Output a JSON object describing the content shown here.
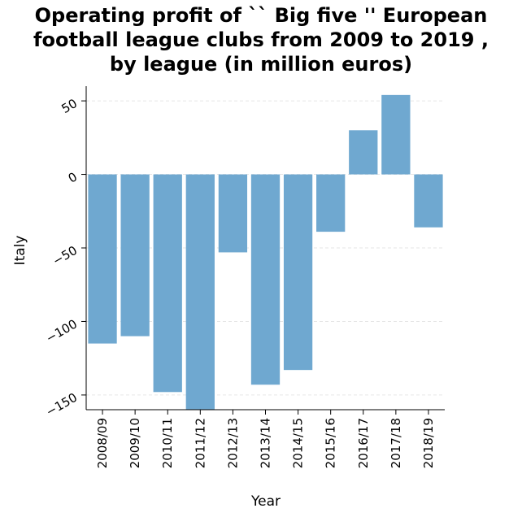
{
  "chart_data": {
    "type": "bar",
    "title_lines": [
      "Operating profit of `` Big five '' European",
      "football league clubs from 2009 to 2019 ,",
      "by league (in million euros)"
    ],
    "xlabel": "Year",
    "ylabel": "Italy",
    "categories": [
      "2008/09",
      "2009/10",
      "2010/11",
      "2011/12",
      "2012/13",
      "2013/14",
      "2014/15",
      "2015/16",
      "2016/17",
      "2017/18",
      "2018/19"
    ],
    "values": [
      -115,
      -110,
      -148,
      -160,
      -53,
      -143,
      -133,
      -39,
      30,
      54,
      -36
    ],
    "ylim": [
      -160,
      60
    ],
    "yticks": [
      50,
      0,
      -50,
      -100,
      -150
    ],
    "ytick_labels": [
      "50",
      "0",
      "−50",
      "−100",
      "−150"
    ],
    "grid": true,
    "bar_color": "#6fa8d0"
  }
}
